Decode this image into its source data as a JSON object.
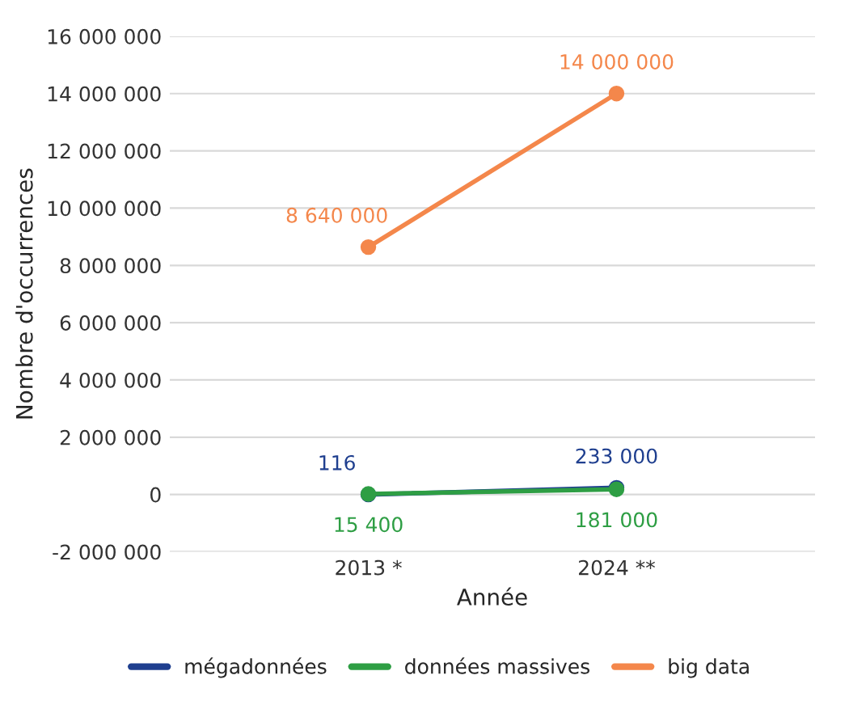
{
  "chart_data": {
    "type": "line",
    "xlabel": "Année",
    "ylabel": "Nombre d'occurrences",
    "categories": [
      "2013 *",
      "2024 **"
    ],
    "series": [
      {
        "name": "mégadonnées",
        "color": "#1f3f8f",
        "values": [
          116,
          233000
        ],
        "value_labels": [
          "116",
          "233 000"
        ]
      },
      {
        "name": "données massives",
        "color": "#2e9e44",
        "values": [
          15400,
          181000
        ],
        "value_labels": [
          "15 400",
          "181 000"
        ]
      },
      {
        "name": "big data",
        "color": "#f4874b",
        "values": [
          8640000,
          14000000
        ],
        "value_labels": [
          "8 640 000",
          "14 000 000"
        ]
      }
    ],
    "ylim": [
      -2000000,
      16000000
    ],
    "yticks": [
      {
        "value": -2000000,
        "label": "-2 000 000"
      },
      0,
      {
        "value": 2000000,
        "label": "2 000 000"
      },
      {
        "value": 4000000,
        "label": "4 000 000"
      },
      {
        "value": 6000000,
        "label": "6 000 000"
      },
      {
        "value": 8000000,
        "label": "8 000 000"
      },
      {
        "value": 10000000,
        "label": "10 000 000"
      },
      {
        "value": 12000000,
        "label": "12 000 000"
      },
      {
        "value": 14000000,
        "label": "14 000 000"
      },
      {
        "value": 16000000,
        "label": "16 000 000"
      }
    ],
    "grid": "y",
    "legend": "bottom",
    "marker": "circle",
    "line_style": "solid"
  }
}
